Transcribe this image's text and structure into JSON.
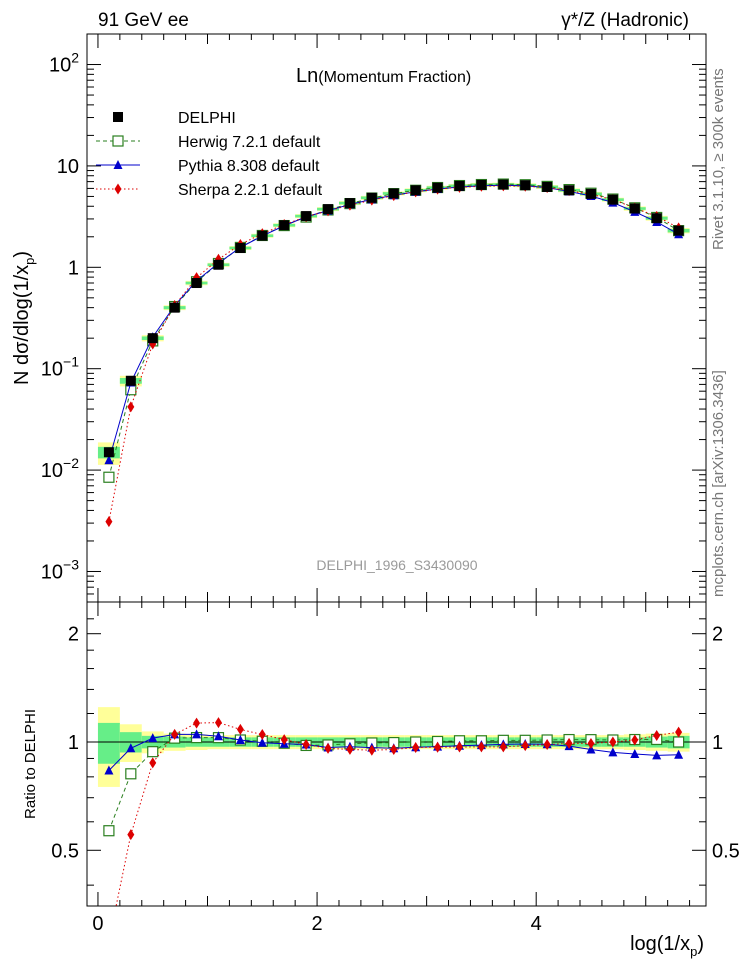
{
  "header": {
    "left": "91 GeV ee",
    "right": "γ*/Z (Hadronic)"
  },
  "side_text": {
    "rivet": "Rivet 3.1.10, ≥ 300k events",
    "mcplots": "mcplots.cern.ch [arXiv:1306.3436]"
  },
  "chart_data": {
    "type": "scatter",
    "title": "Ln(Momentum Fraction)",
    "title_parts": {
      "main": "Ln",
      "sub": "(Momentum Fraction)"
    },
    "watermark": "DELPHI_1996_S3430090",
    "xlabel": "log(1/x_p)",
    "ylabel": "N dσ/dlog(1/x_p)",
    "ratio_ylabel": "Ratio to DELPHI",
    "xlim": [
      -0.1,
      5.55
    ],
    "ylim": [
      0.0005,
      200
    ],
    "yscale": "log",
    "ratio_ylim": [
      0.35,
      2.45
    ],
    "x_ticks": [
      "0",
      "2",
      "4"
    ],
    "y_ticks": [
      "10^-3",
      "10^-2",
      "10^-1",
      "1",
      "10",
      "10^2"
    ],
    "ratio_ticks": [
      "0.5",
      "1",
      "2"
    ],
    "legend_position": "top-left",
    "x": [
      0.1,
      0.3,
      0.5,
      0.7,
      0.9,
      1.1,
      1.3,
      1.5,
      1.7,
      1.9,
      2.1,
      2.3,
      2.5,
      2.7,
      2.9,
      3.1,
      3.3,
      3.5,
      3.7,
      3.9,
      4.1,
      4.3,
      4.5,
      4.7,
      4.9,
      5.1,
      5.3
    ],
    "band_inner": [
      0.13,
      0.065,
      0.04,
      0.035,
      0.03,
      0.03,
      0.03,
      0.03,
      0.03,
      0.03,
      0.03,
      0.03,
      0.03,
      0.03,
      0.03,
      0.03,
      0.03,
      0.03,
      0.03,
      0.03,
      0.03,
      0.03,
      0.03,
      0.03,
      0.03,
      0.035,
      0.04
    ],
    "band_outer": [
      0.25,
      0.12,
      0.07,
      0.055,
      0.05,
      0.045,
      0.045,
      0.045,
      0.045,
      0.045,
      0.045,
      0.045,
      0.045,
      0.045,
      0.045,
      0.045,
      0.045,
      0.045,
      0.045,
      0.045,
      0.045,
      0.045,
      0.045,
      0.045,
      0.05,
      0.055,
      0.06
    ],
    "series": [
      {
        "name": "DELPHI",
        "color": "#000000",
        "marker": "filled-square",
        "line": "none",
        "values": [
          0.015,
          0.076,
          0.2,
          0.4,
          0.7,
          1.06,
          1.55,
          2.05,
          2.6,
          3.2,
          3.75,
          4.3,
          4.85,
          5.35,
          5.75,
          6.1,
          6.35,
          6.5,
          6.55,
          6.45,
          6.2,
          5.75,
          5.3,
          4.65,
          3.8,
          3.05,
          2.3
        ]
      },
      {
        "name": "Herwig 7.2.1 default",
        "color": "#2a7f1f",
        "marker": "open-square",
        "line": "dashed",
        "values": [
          0.0085,
          0.062,
          0.188,
          0.41,
          0.72,
          1.09,
          1.57,
          2.06,
          2.58,
          3.13,
          3.68,
          4.25,
          4.82,
          5.33,
          5.75,
          6.12,
          6.4,
          6.55,
          6.62,
          6.52,
          6.28,
          5.84,
          5.38,
          4.71,
          3.86,
          3.1,
          2.3
        ]
      },
      {
        "name": "Pythia 8.308 default",
        "color": "#0000cc",
        "marker": "filled-triangle",
        "line": "solid",
        "values": [
          0.0125,
          0.073,
          0.205,
          0.42,
          0.735,
          1.1,
          1.57,
          2.04,
          2.57,
          3.15,
          3.62,
          4.17,
          4.68,
          5.14,
          5.56,
          5.92,
          6.2,
          6.37,
          6.45,
          6.37,
          6.11,
          5.6,
          5.05,
          4.35,
          3.52,
          2.8,
          2.12
        ]
      },
      {
        "name": "Sherpa 2.2.1 default",
        "color": "#dd0000",
        "marker": "filled-diamond",
        "line": "dotted",
        "values": [
          0.0031,
          0.042,
          0.175,
          0.42,
          0.79,
          1.2,
          1.68,
          2.15,
          2.64,
          3.15,
          3.6,
          4.1,
          4.6,
          5.1,
          5.55,
          5.9,
          6.15,
          6.3,
          6.35,
          6.3,
          6.1,
          5.7,
          5.25,
          4.65,
          3.85,
          3.18,
          2.45
        ]
      }
    ]
  }
}
